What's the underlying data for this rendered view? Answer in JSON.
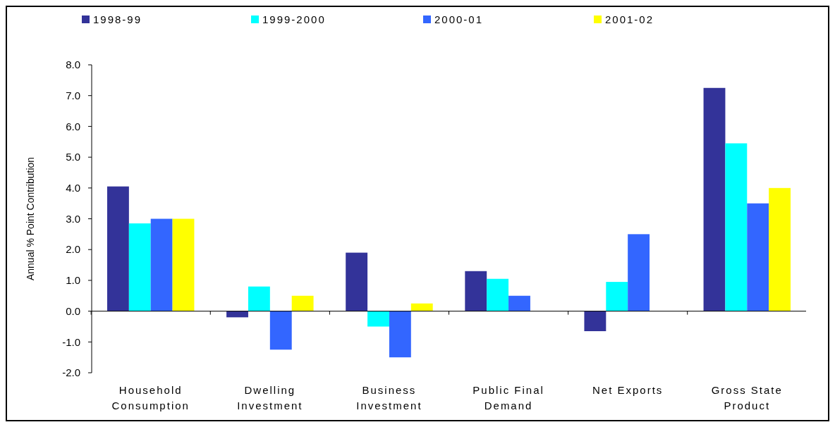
{
  "chart_data": {
    "type": "bar",
    "ylabel": "Annual % Point Contribution",
    "categories": [
      "Household\nConsumption",
      "Dwelling\nInvestment",
      "Business\nInvestment",
      "Public Final\nDemand",
      "Net Exports",
      "Gross State\nProduct"
    ],
    "series": [
      {
        "name": "1998-99",
        "color": "#333399",
        "values": [
          4.05,
          -0.2,
          1.9,
          1.3,
          -0.65,
          7.25
        ]
      },
      {
        "name": "1999-2000",
        "color": "#00ffff",
        "values": [
          2.85,
          0.8,
          -0.5,
          1.05,
          0.95,
          5.45
        ]
      },
      {
        "name": "2000-01",
        "color": "#3366ff",
        "values": [
          3.0,
          -1.25,
          -1.5,
          0.5,
          2.5,
          3.5
        ]
      },
      {
        "name": "2001-02",
        "color": "#ffff00",
        "values": [
          3.0,
          0.5,
          0.25,
          null,
          null,
          4.0
        ]
      }
    ],
    "ylim": [
      -2,
      8
    ],
    "yticks": [
      {
        "value": -2,
        "label": "-2.0"
      },
      {
        "value": -1,
        "label": "-1.0"
      },
      {
        "value": 0,
        "label": "0.0"
      },
      {
        "value": 1,
        "label": "1.0"
      },
      {
        "value": 2,
        "label": "2.0"
      },
      {
        "value": 3,
        "label": "3.0"
      },
      {
        "value": 4,
        "label": "4.0"
      },
      {
        "value": 5,
        "label": "5.0"
      },
      {
        "value": 6,
        "label": "6.0"
      },
      {
        "value": 7,
        "label": "7.0"
      },
      {
        "value": 8,
        "label": "8.0"
      }
    ],
    "legend": "top"
  }
}
